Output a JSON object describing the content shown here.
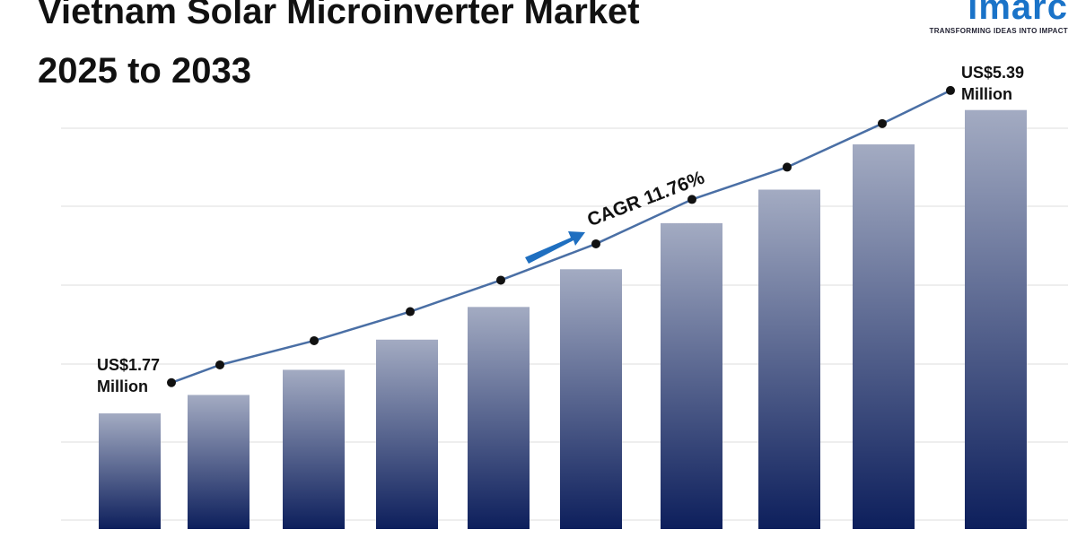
{
  "chart_data": {
    "type": "bar",
    "title": "Vietnam Solar Microinverter Market 2025 to 2033",
    "categories": [
      null,
      null,
      null,
      null,
      null,
      null,
      null,
      null,
      null,
      null
    ],
    "values": [
      1.77,
      1.99,
      2.29,
      2.65,
      3.04,
      3.49,
      4.04,
      4.44,
      4.98,
      5.39
    ],
    "value_labels": [
      "US$1.77 Million",
      null,
      null,
      null,
      null,
      null,
      null,
      null,
      null,
      "US$5.39 Million"
    ],
    "color": "#0d1f5c",
    "line_color": "#4a6fa5",
    "ylim": [
      0.39,
      6.2
    ],
    "annotation": "CAGR 11.76%"
  },
  "logo": {
    "name": "imarc",
    "tagline": "TRANSFORMING IDEAS INTO IMPACT"
  }
}
